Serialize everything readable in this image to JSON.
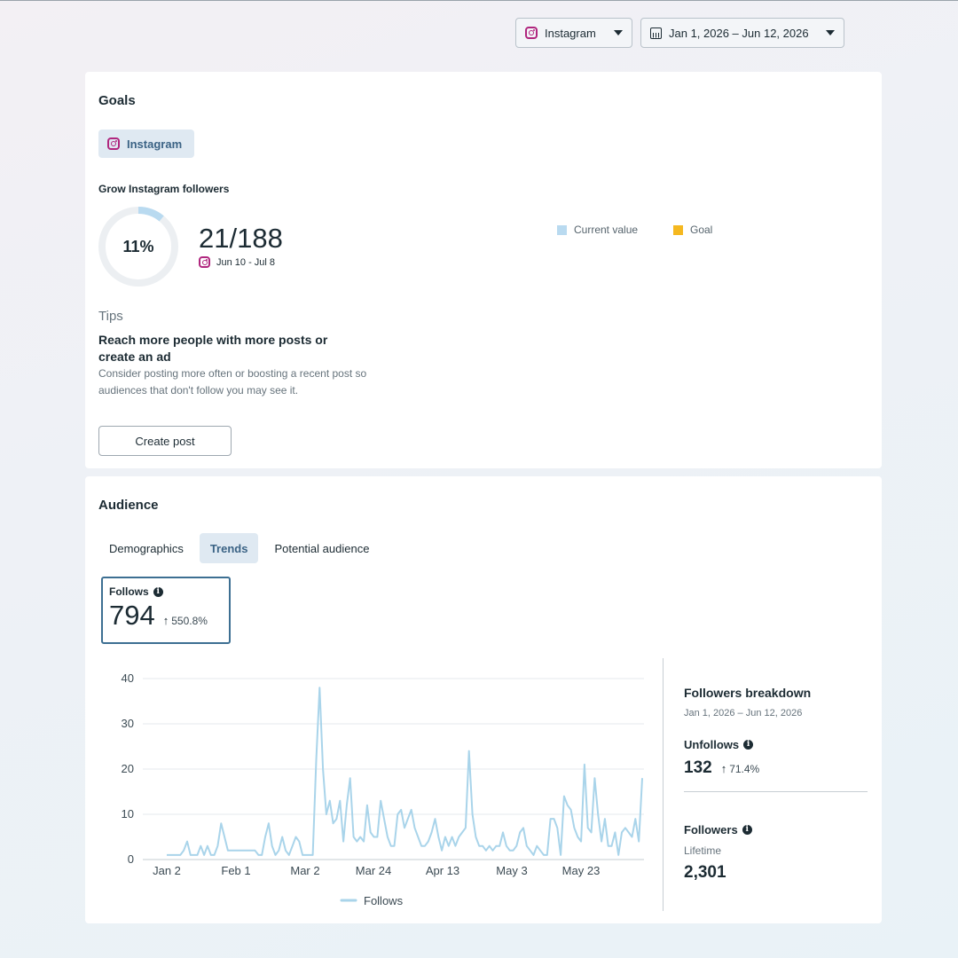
{
  "filters": {
    "platform": "Instagram",
    "date_range": "Jan 1, 2026 – Jun 12, 2026"
  },
  "goals": {
    "title": "Goals",
    "platform_chip": "Instagram",
    "goal_name": "Grow Instagram followers",
    "progress_percent": "11%",
    "progress_fraction": 0.11,
    "value": "21/188",
    "range": "Jun 10 - Jul 8",
    "legend": [
      {
        "label": "Current value",
        "color": "#b9daf0"
      },
      {
        "label": "Goal",
        "color": "#f5b820"
      }
    ],
    "tips_label": "Tips",
    "tips_heading": "Reach more people with more posts or create an ad",
    "tips_body": "Consider posting more often or boosting a recent post so audiences that don't follow you may see it.",
    "create_button": "Create post"
  },
  "audience": {
    "title": "Audience",
    "tabs": [
      {
        "label": "Demographics",
        "active": false
      },
      {
        "label": "Trends",
        "active": true
      },
      {
        "label": "Potential audience",
        "active": false
      }
    ],
    "metric": {
      "label": "Follows",
      "value": "794",
      "change": "550.8%"
    },
    "breakdown": {
      "title": "Followers breakdown",
      "date": "Jan 1, 2026 – Jun 12, 2026",
      "unfollows_label": "Unfollows",
      "unfollows_value": "132",
      "unfollows_change": "71.4%",
      "followers_label": "Followers",
      "followers_sub": "Lifetime",
      "followers_value": "2,301"
    }
  },
  "chart_data": {
    "type": "line",
    "xlabel": "",
    "ylabel": "",
    "ylim": [
      0,
      40
    ],
    "yticks": [
      0,
      10,
      20,
      30,
      40
    ],
    "x_tick_labels": [
      "Jan 2",
      "Feb 1",
      "Mar 2",
      "Mar 24",
      "Apr 13",
      "May 3",
      "May 23"
    ],
    "grid": true,
    "legend_position": "bottom",
    "color": "#a9d4ea",
    "series": [
      {
        "name": "Follows",
        "values": [
          1,
          1,
          1,
          1,
          1,
          2,
          4,
          1,
          1,
          1,
          3,
          1,
          3,
          1,
          1,
          3,
          8,
          5,
          2,
          2,
          2,
          2,
          2,
          2,
          2,
          2,
          2,
          1,
          1,
          5,
          8,
          3,
          1,
          2,
          5,
          2,
          1,
          3,
          5,
          4,
          1,
          1,
          1,
          1,
          22,
          38,
          20,
          10,
          13,
          8,
          9,
          13,
          4,
          12,
          18,
          5,
          4,
          5,
          4,
          12,
          6,
          5,
          5,
          13,
          9,
          5,
          3,
          3,
          10,
          11,
          7,
          9,
          11,
          7,
          5,
          3,
          3,
          4,
          6,
          9,
          5,
          2,
          5,
          3,
          5,
          3,
          5,
          6,
          7,
          24,
          10,
          5,
          3,
          3,
          2,
          3,
          2,
          3,
          3,
          6,
          3,
          2,
          2,
          3,
          6,
          7,
          3,
          2,
          1,
          3,
          2,
          1,
          1,
          9,
          9,
          7,
          1,
          14,
          12,
          11,
          7,
          5,
          4,
          21,
          7,
          6,
          18,
          10,
          4,
          9,
          3,
          3,
          6,
          1,
          6,
          7,
          6,
          5,
          9,
          4,
          18
        ]
      }
    ]
  }
}
